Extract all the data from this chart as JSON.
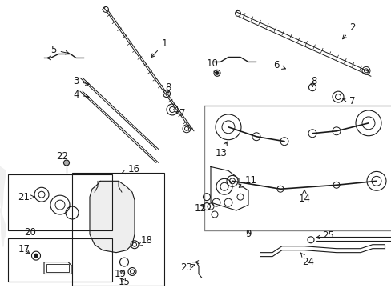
{
  "bg_color": "#ffffff",
  "line_color": "#1a1a1a",
  "gray_color": "#888888",
  "font_size": 8.5,
  "figsize": [
    4.89,
    3.6
  ],
  "dpi": 100
}
